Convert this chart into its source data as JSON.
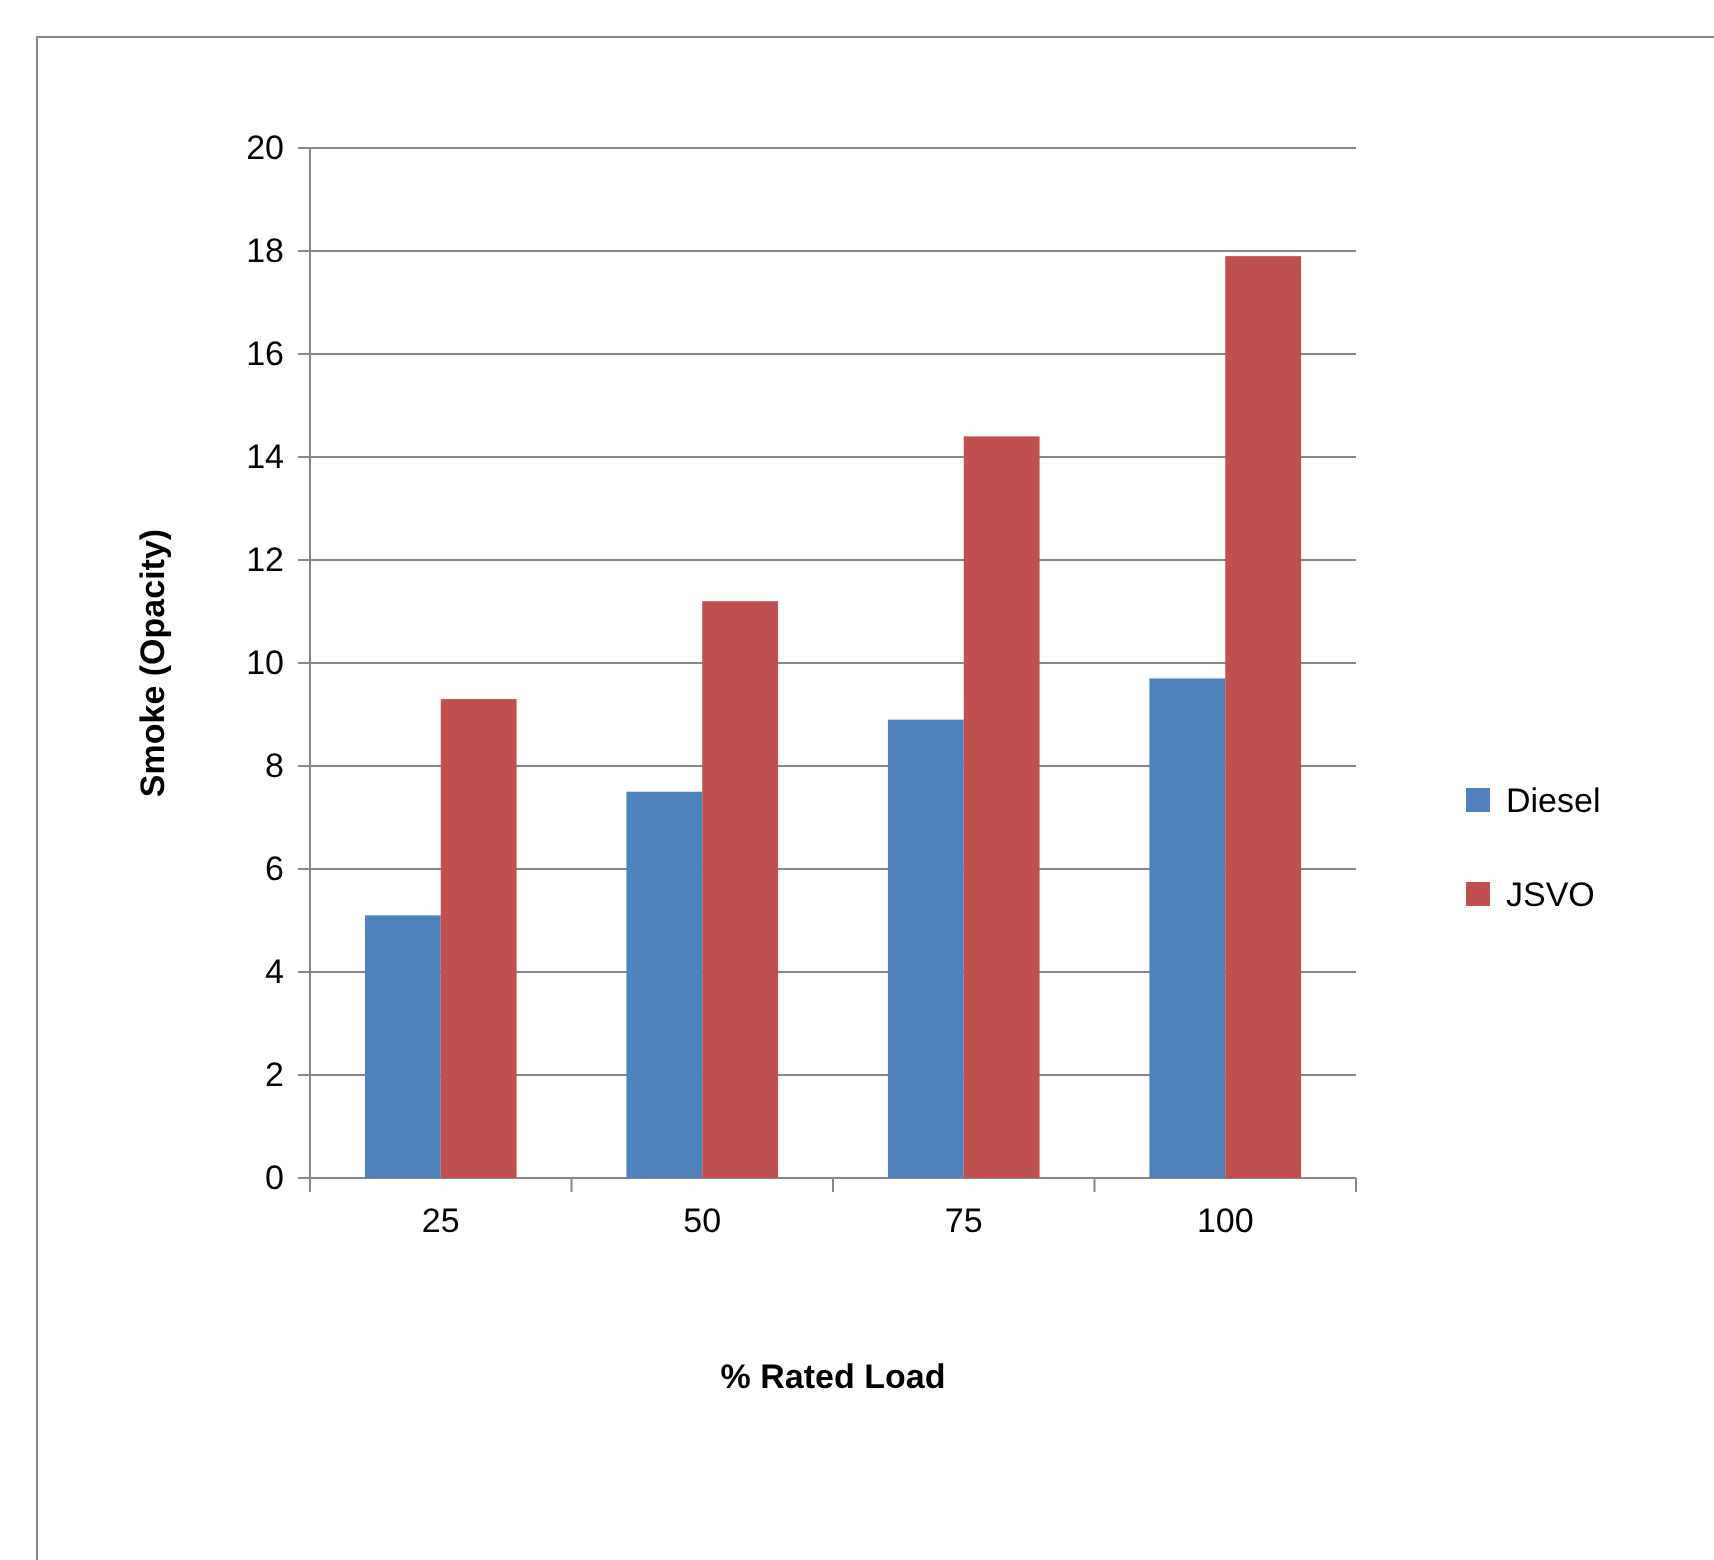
{
  "chart_data": {
    "type": "bar",
    "xlabel": "% Rated Load",
    "ylabel": "Smoke (Opacity)",
    "categories": [
      "25",
      "50",
      "75",
      "100"
    ],
    "series": [
      {
        "name": "Diesel",
        "color": "#4f81bd",
        "values": [
          5.1,
          7.5,
          8.9,
          9.7
        ]
      },
      {
        "name": "JSVO",
        "color": "#c0504d",
        "values": [
          9.3,
          11.2,
          14.4,
          17.9
        ]
      }
    ],
    "ylim": [
      0,
      20
    ],
    "yticks": [
      0,
      2,
      4,
      6,
      8,
      10,
      12,
      14,
      16,
      18,
      20
    ],
    "grid": "y",
    "legend": "right"
  }
}
